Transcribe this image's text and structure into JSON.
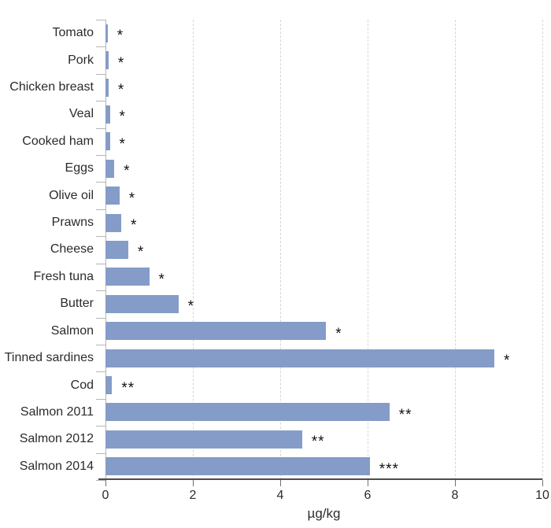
{
  "chart_data": {
    "type": "bar",
    "orientation": "horizontal",
    "title": "",
    "xlabel": "µg/kg",
    "ylabel": "",
    "xlim": [
      0,
      10
    ],
    "xticks": [
      0,
      2,
      4,
      6,
      8,
      10
    ],
    "grid": "vertical-dashed",
    "legend": "none",
    "bar_color": "#849cc7",
    "categories": [
      "Tomato",
      "Pork",
      "Chicken breast",
      "Veal",
      "Cooked ham",
      "Eggs",
      "Olive oil",
      "Prawns",
      "Cheese",
      "Fresh tuna",
      "Butter",
      "Salmon",
      "Tinned sardines",
      "Cod",
      "Salmon 2011",
      "Salmon 2012",
      "Salmon 2014"
    ],
    "values": [
      0.05,
      0.07,
      0.07,
      0.1,
      0.1,
      0.2,
      0.32,
      0.36,
      0.52,
      1.0,
      1.67,
      5.05,
      8.9,
      0.15,
      6.5,
      4.5,
      6.05
    ],
    "annotations": [
      "*",
      "*",
      "*",
      "*",
      "*",
      "*",
      "*",
      "*",
      "*",
      "*",
      "*",
      "*",
      "*",
      "**",
      "**",
      "**",
      "***"
    ]
  }
}
